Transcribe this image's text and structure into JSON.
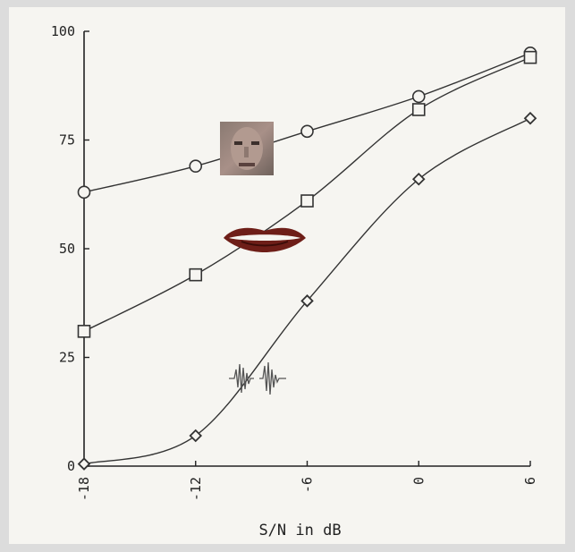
{
  "chart_data": {
    "type": "line",
    "xlabel": "S/N in dB",
    "ylabel": "",
    "x": [
      -18,
      -12,
      -6,
      0,
      6
    ],
    "x_ticks": [
      "-18",
      "-12",
      "-6",
      "0",
      "6"
    ],
    "y_ticks": [
      "0",
      "25",
      "50",
      "75",
      "100"
    ],
    "xlim": [
      -18,
      6
    ],
    "ylim": [
      0,
      100
    ],
    "grid": false,
    "series": [
      {
        "marker": "circle",
        "icon": "face-icon",
        "values": [
          63,
          69,
          77,
          85,
          95
        ]
      },
      {
        "marker": "square",
        "icon": "lips-icon",
        "values": [
          31,
          44,
          61,
          82,
          94
        ]
      },
      {
        "marker": "diamond",
        "icon": "waveform-icon",
        "values": [
          0.5,
          7,
          38,
          66,
          80
        ]
      }
    ]
  }
}
